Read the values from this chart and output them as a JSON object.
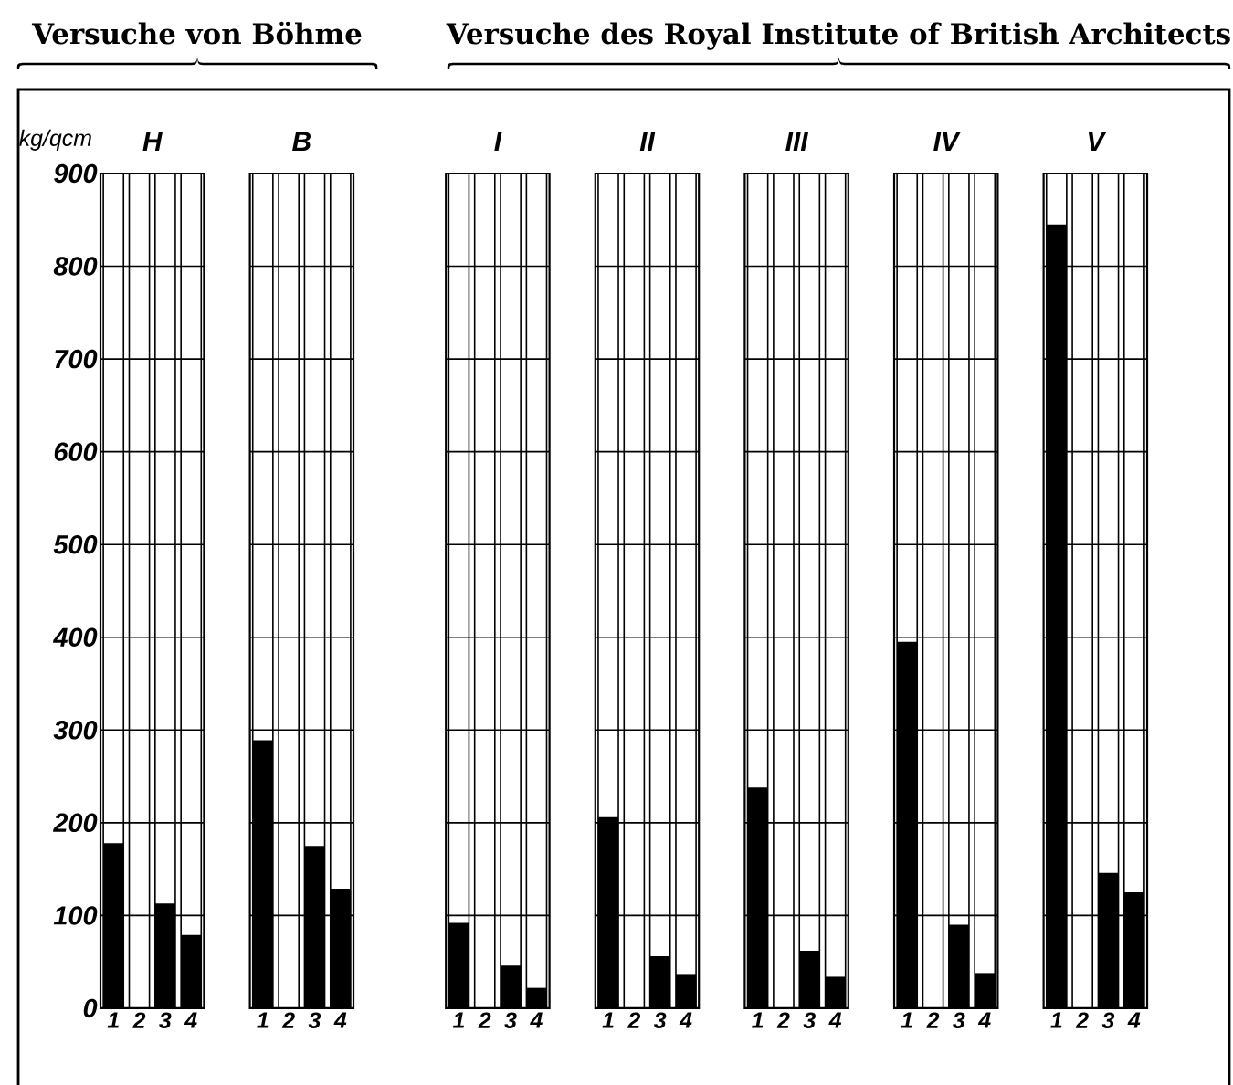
{
  "chart_data": [
    {
      "type": "bar",
      "title": "H",
      "ylabel": "kg/qcm",
      "annotations": [
        "Versuche von Böhme"
      ],
      "categories": [
        "1",
        "2",
        "3",
        "4"
      ],
      "values": [
        178,
        null,
        113,
        79
      ],
      "color": "#000000",
      "ylim": [
        0,
        900
      ],
      "yticks": [
        0,
        100,
        200,
        300,
        400,
        500,
        600,
        700,
        800,
        900
      ],
      "grid": true
    },
    {
      "type": "bar",
      "title": "B",
      "categories": [
        "1",
        "2",
        "3",
        "4"
      ],
      "values": [
        289,
        null,
        175,
        129
      ],
      "color": "#000000",
      "ylim": [
        0,
        900
      ],
      "yticks": [
        0,
        100,
        200,
        300,
        400,
        500,
        600,
        700,
        800,
        900
      ],
      "grid": true,
      "tick_labels": "x"
    },
    {
      "type": "bar",
      "title": "I",
      "annotations": [
        "Versuche des Royal Institute of British Architects"
      ],
      "categories": [
        "1",
        "2",
        "3",
        "4"
      ],
      "values": [
        92,
        null,
        46,
        22
      ],
      "color": "#000000",
      "ylim": [
        0,
        900
      ],
      "yticks": [
        0,
        100,
        200,
        300,
        400,
        500,
        600,
        700,
        800,
        900
      ],
      "grid": true,
      "tick_labels": "x"
    },
    {
      "type": "bar",
      "title": "II",
      "categories": [
        "1",
        "2",
        "3",
        "4"
      ],
      "values": [
        206,
        null,
        56,
        36
      ],
      "color": "#000000",
      "ylim": [
        0,
        900
      ],
      "yticks": [
        0,
        100,
        200,
        300,
        400,
        500,
        600,
        700,
        800,
        900
      ],
      "grid": true,
      "tick_labels": "x"
    },
    {
      "type": "bar",
      "title": "III",
      "categories": [
        "1",
        "2",
        "3",
        "4"
      ],
      "values": [
        238,
        null,
        62,
        34
      ],
      "color": "#000000",
      "ylim": [
        0,
        900
      ],
      "yticks": [
        0,
        100,
        200,
        300,
        400,
        500,
        600,
        700,
        800,
        900
      ],
      "grid": true,
      "tick_labels": "x"
    },
    {
      "type": "bar",
      "title": "IV",
      "categories": [
        "1",
        "2",
        "3",
        "4"
      ],
      "values": [
        395,
        null,
        90,
        38
      ],
      "color": "#000000",
      "ylim": [
        0,
        900
      ],
      "yticks": [
        0,
        100,
        200,
        300,
        400,
        500,
        600,
        700,
        800,
        900
      ],
      "grid": true,
      "tick_labels": "x"
    },
    {
      "type": "bar",
      "title": "V",
      "categories": [
        "1",
        "2",
        "3",
        "4"
      ],
      "values": [
        845,
        null,
        146,
        125
      ],
      "color": "#000000",
      "ylim": [
        0,
        900
      ],
      "yticks": [
        0,
        100,
        200,
        300,
        400,
        500,
        600,
        700,
        800,
        900
      ],
      "grid": true,
      "tick_labels": "x"
    }
  ]
}
